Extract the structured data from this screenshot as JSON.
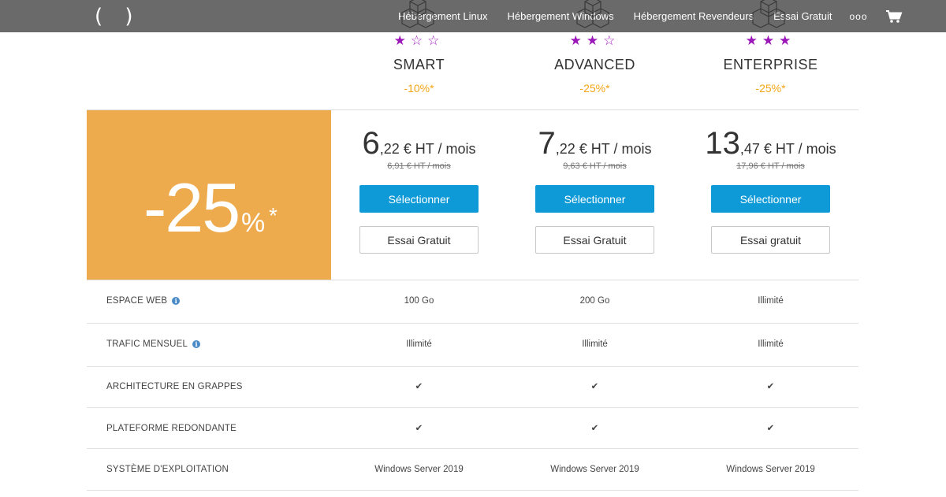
{
  "header": {
    "logo": "( )",
    "nav": [
      "Hébergement Linux",
      "Hébergement Windows",
      "Hébergement Revendeurs",
      "Essai Gratuit"
    ],
    "more": "ooo",
    "cart_icon": "cart-icon"
  },
  "promo": {
    "value": "-25",
    "percent": "%",
    "asterisk": "*",
    "color": "#eeab4d"
  },
  "plans": [
    {
      "stars": "★☆☆",
      "rating": 1,
      "name": "SMART",
      "discount": "-10%*",
      "price_int": "6",
      "price_rest": ",22 € HT / mois",
      "old_price": "6,91 € HT / mois",
      "select_label": "Sélectionner",
      "trial_label": "Essai Gratuit"
    },
    {
      "stars": "★★☆",
      "rating": 2,
      "name": "ADVANCED",
      "discount": "-25%*",
      "price_int": "7",
      "price_rest": ",22 € HT / mois",
      "old_price": "9,63 € HT / mois",
      "select_label": "Sélectionner",
      "trial_label": "Essai Gratuit"
    },
    {
      "stars": "★★★",
      "rating": 3,
      "name": "ENTERPRISE",
      "discount": "-25%*",
      "price_int": "13",
      "price_rest": ",47 € HT / mois",
      "old_price": "17,96 € HT / mois",
      "select_label": "Sélectionner",
      "trial_label": "Essai gratuit"
    }
  ],
  "features": [
    {
      "label": "ESPACE WEB",
      "info": true,
      "values": [
        "100 Go",
        "200 Go",
        "Illimité"
      ]
    },
    {
      "label": "TRAFIC MENSUEL",
      "info": true,
      "values": [
        "Illimité",
        "Illimité",
        "Illimité"
      ]
    },
    {
      "label": "ARCHITECTURE EN GRAPPES",
      "info": false,
      "values": [
        "✔",
        "✔",
        "✔"
      ]
    },
    {
      "label": "PLATEFORME REDONDANTE",
      "info": false,
      "values": [
        "✔",
        "✔",
        "✔"
      ]
    },
    {
      "label": "SYSTÈME D'EXPLOITATION",
      "info": false,
      "values": [
        "Windows Server 2019",
        "Windows Server 2019",
        "Windows Server 2019"
      ]
    }
  ],
  "colors": {
    "accent_blue": "#0e9ad7",
    "star_purple": "#9b17b9",
    "discount_orange": "#f2a516",
    "topbar": "#6a6a6a"
  }
}
